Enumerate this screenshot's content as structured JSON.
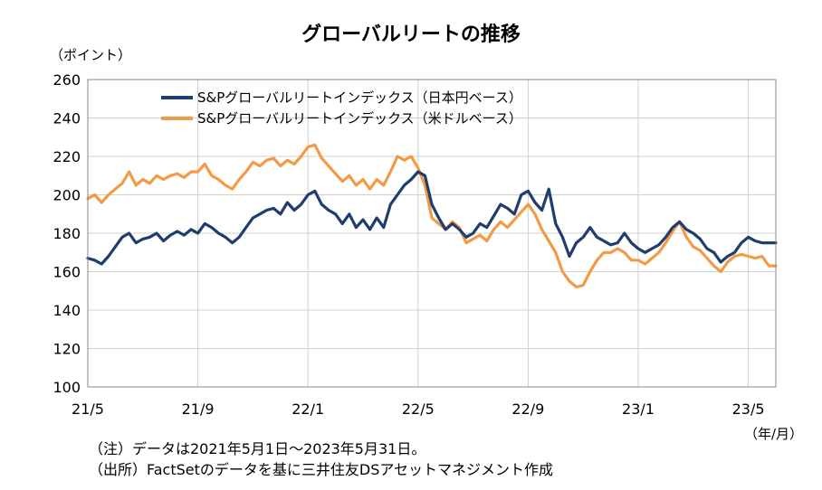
{
  "chart_data": {
    "type": "line",
    "title": "グローバルリートの推移",
    "y_unit": "（ポイント）",
    "x_unit": "（年/月）",
    "ylim": [
      100,
      260
    ],
    "yticks": [
      100,
      120,
      140,
      160,
      180,
      200,
      220,
      240,
      260
    ],
    "x_ticks": [
      "21/5",
      "21/9",
      "22/1",
      "22/5",
      "22/9",
      "23/1",
      "23/5"
    ],
    "x_tick_positions": [
      0,
      4,
      8,
      12,
      16,
      20,
      24
    ],
    "x_range": [
      0,
      25
    ],
    "grid": true,
    "legend_position": "top-left",
    "series": [
      {
        "name": "S&Pグローバルリートインデックス（日本円ベース）",
        "color": "#1f3d6e",
        "points": [
          [
            0,
            167
          ],
          [
            0.25,
            166
          ],
          [
            0.5,
            164
          ],
          [
            0.75,
            168
          ],
          [
            1.0,
            173
          ],
          [
            1.25,
            178
          ],
          [
            1.5,
            180
          ],
          [
            1.75,
            175
          ],
          [
            2.0,
            177
          ],
          [
            2.25,
            178
          ],
          [
            2.5,
            180
          ],
          [
            2.75,
            176
          ],
          [
            3.0,
            179
          ],
          [
            3.25,
            181
          ],
          [
            3.5,
            179
          ],
          [
            3.75,
            182
          ],
          [
            4.0,
            180
          ],
          [
            4.25,
            185
          ],
          [
            4.5,
            183
          ],
          [
            4.75,
            180
          ],
          [
            5.0,
            178
          ],
          [
            5.25,
            175
          ],
          [
            5.5,
            178
          ],
          [
            5.75,
            183
          ],
          [
            6.0,
            188
          ],
          [
            6.25,
            190
          ],
          [
            6.5,
            192
          ],
          [
            6.75,
            193
          ],
          [
            7.0,
            190
          ],
          [
            7.25,
            196
          ],
          [
            7.5,
            192
          ],
          [
            7.75,
            195
          ],
          [
            8.0,
            200
          ],
          [
            8.25,
            202
          ],
          [
            8.5,
            195
          ],
          [
            8.75,
            192
          ],
          [
            9.0,
            190
          ],
          [
            9.25,
            185
          ],
          [
            9.5,
            190
          ],
          [
            9.75,
            183
          ],
          [
            10.0,
            187
          ],
          [
            10.25,
            182
          ],
          [
            10.5,
            188
          ],
          [
            10.75,
            183
          ],
          [
            11.0,
            195
          ],
          [
            11.25,
            200
          ],
          [
            11.5,
            205
          ],
          [
            11.75,
            208
          ],
          [
            12.0,
            212
          ],
          [
            12.25,
            210
          ],
          [
            12.5,
            195
          ],
          [
            12.75,
            188
          ],
          [
            13.0,
            182
          ],
          [
            13.25,
            185
          ],
          [
            13.5,
            182
          ],
          [
            13.75,
            178
          ],
          [
            14.0,
            180
          ],
          [
            14.25,
            185
          ],
          [
            14.5,
            183
          ],
          [
            14.75,
            189
          ],
          [
            15.0,
            195
          ],
          [
            15.25,
            193
          ],
          [
            15.5,
            190
          ],
          [
            15.75,
            200
          ],
          [
            16.0,
            202
          ],
          [
            16.25,
            196
          ],
          [
            16.5,
            192
          ],
          [
            16.75,
            203
          ],
          [
            17.0,
            185
          ],
          [
            17.25,
            178
          ],
          [
            17.5,
            168
          ],
          [
            17.75,
            175
          ],
          [
            18.0,
            178
          ],
          [
            18.25,
            183
          ],
          [
            18.5,
            178
          ],
          [
            18.75,
            176
          ],
          [
            19.0,
            174
          ],
          [
            19.25,
            175
          ],
          [
            19.5,
            180
          ],
          [
            19.75,
            175
          ],
          [
            20.0,
            172
          ],
          [
            20.25,
            170
          ],
          [
            20.5,
            172
          ],
          [
            20.75,
            174
          ],
          [
            21.0,
            178
          ],
          [
            21.25,
            183
          ],
          [
            21.5,
            186
          ],
          [
            21.75,
            182
          ],
          [
            22.0,
            180
          ],
          [
            22.25,
            177
          ],
          [
            22.5,
            172
          ],
          [
            22.75,
            170
          ],
          [
            23.0,
            165
          ],
          [
            23.25,
            168
          ],
          [
            23.5,
            170
          ],
          [
            23.75,
            175
          ],
          [
            24.0,
            178
          ],
          [
            24.25,
            176
          ],
          [
            24.5,
            175
          ],
          [
            25.0,
            175
          ]
        ]
      },
      {
        "name": "S&Pグローバルリートインデックス（米ドルベース）",
        "color": "#f39a45",
        "points": [
          [
            0,
            198
          ],
          [
            0.25,
            200
          ],
          [
            0.5,
            196
          ],
          [
            0.75,
            200
          ],
          [
            1.0,
            203
          ],
          [
            1.25,
            206
          ],
          [
            1.5,
            212
          ],
          [
            1.75,
            205
          ],
          [
            2.0,
            208
          ],
          [
            2.25,
            206
          ],
          [
            2.5,
            210
          ],
          [
            2.75,
            208
          ],
          [
            3.0,
            210
          ],
          [
            3.25,
            211
          ],
          [
            3.5,
            209
          ],
          [
            3.75,
            212
          ],
          [
            4.0,
            212
          ],
          [
            4.25,
            216
          ],
          [
            4.5,
            210
          ],
          [
            4.75,
            208
          ],
          [
            5.0,
            205
          ],
          [
            5.25,
            203
          ],
          [
            5.5,
            208
          ],
          [
            5.75,
            212
          ],
          [
            6.0,
            217
          ],
          [
            6.25,
            215
          ],
          [
            6.5,
            218
          ],
          [
            6.75,
            219
          ],
          [
            7.0,
            215
          ],
          [
            7.25,
            218
          ],
          [
            7.5,
            216
          ],
          [
            7.75,
            220
          ],
          [
            8.0,
            225
          ],
          [
            8.25,
            226
          ],
          [
            8.5,
            219
          ],
          [
            8.75,
            215
          ],
          [
            9.0,
            211
          ],
          [
            9.25,
            207
          ],
          [
            9.5,
            210
          ],
          [
            9.75,
            205
          ],
          [
            10.0,
            208
          ],
          [
            10.25,
            203
          ],
          [
            10.5,
            208
          ],
          [
            10.75,
            205
          ],
          [
            11.0,
            212
          ],
          [
            11.25,
            220
          ],
          [
            11.5,
            218
          ],
          [
            11.75,
            220
          ],
          [
            12.0,
            214
          ],
          [
            12.25,
            205
          ],
          [
            12.5,
            188
          ],
          [
            12.75,
            185
          ],
          [
            13.0,
            182
          ],
          [
            13.25,
            186
          ],
          [
            13.5,
            183
          ],
          [
            13.75,
            175
          ],
          [
            14.0,
            177
          ],
          [
            14.25,
            179
          ],
          [
            14.5,
            176
          ],
          [
            14.75,
            182
          ],
          [
            15.0,
            186
          ],
          [
            15.25,
            183
          ],
          [
            15.5,
            187
          ],
          [
            15.75,
            191
          ],
          [
            16.0,
            195
          ],
          [
            16.25,
            190
          ],
          [
            16.5,
            182
          ],
          [
            16.75,
            176
          ],
          [
            17.0,
            170
          ],
          [
            17.25,
            160
          ],
          [
            17.5,
            155
          ],
          [
            17.75,
            152
          ],
          [
            18.0,
            153
          ],
          [
            18.25,
            160
          ],
          [
            18.5,
            166
          ],
          [
            18.75,
            170
          ],
          [
            19.0,
            170
          ],
          [
            19.25,
            172
          ],
          [
            19.5,
            170
          ],
          [
            19.75,
            166
          ],
          [
            20.0,
            166
          ],
          [
            20.25,
            164
          ],
          [
            20.5,
            167
          ],
          [
            20.75,
            170
          ],
          [
            21.0,
            175
          ],
          [
            21.25,
            181
          ],
          [
            21.5,
            186
          ],
          [
            21.75,
            178
          ],
          [
            22.0,
            173
          ],
          [
            22.25,
            171
          ],
          [
            22.5,
            167
          ],
          [
            22.75,
            163
          ],
          [
            23.0,
            160
          ],
          [
            23.25,
            165
          ],
          [
            23.5,
            168
          ],
          [
            23.75,
            169
          ],
          [
            24.0,
            168
          ],
          [
            24.25,
            167
          ],
          [
            24.5,
            168
          ],
          [
            24.75,
            163
          ],
          [
            25.0,
            163
          ]
        ]
      }
    ]
  },
  "notes": [
    "（注）データは2021年5月1日～2023年5月31日。",
    "（出所）FactSetのデータを基に三井住友DSアセットマネジメント作成"
  ]
}
